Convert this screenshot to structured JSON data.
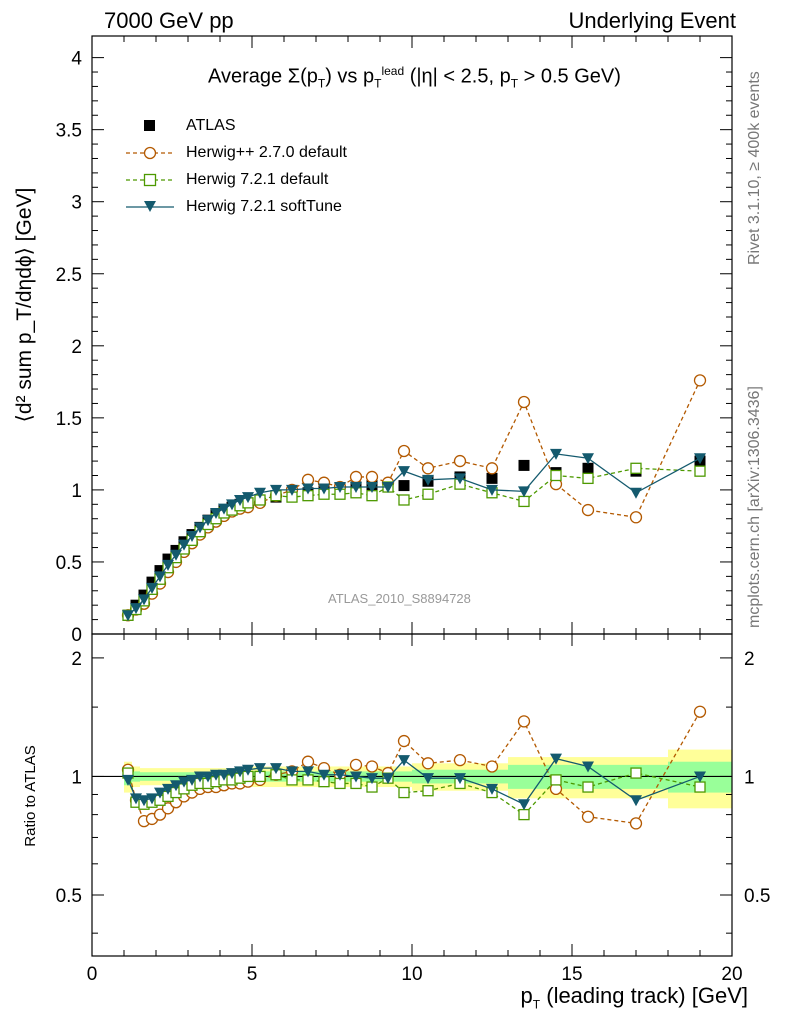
{
  "header": {
    "left": "7000 GeV pp",
    "right": "Underlying Event"
  },
  "side_labels": {
    "rivet": "Rivet 3.1.10, ≥ 400k events",
    "mcplots": "mcplots.cern.ch [arXiv:1306.3436]"
  },
  "watermark": "ATLAS_2010_S8894728",
  "title": {
    "prefix": "Average ",
    "sigma": "Σ",
    "p": "(p",
    "psub": "T",
    "mid": ") vs p",
    "psub2": "T",
    "psup2": "lead",
    "suffix": " (|η| < 2.5, p",
    "psub3": "T",
    "end": " > 0.5 GeV)"
  },
  "axes": {
    "ylabel_main": "⟨d² sum p_T/dηdϕ⟩ [GeV]",
    "ylabel_ratio": "Ratio to ATLAS",
    "xlabel_main": "p",
    "xlabel_sub": "T",
    "xlabel_rest": " (leading track) [GeV]"
  },
  "colors": {
    "atlas": "#000000",
    "herwigpp": "#b35900",
    "herwig721": "#4d9900",
    "softtune": "#145a6e",
    "band_inner": "#99ff99",
    "band_outer": "#ffff99"
  },
  "legend": [
    {
      "label": "ATLAS",
      "marker": "square-filled",
      "color": "#000000"
    },
    {
      "label": "Herwig++ 2.7.0 default",
      "marker": "circle-open",
      "color": "#b35900"
    },
    {
      "label": "Herwig 7.2.1 default",
      "marker": "square-open",
      "color": "#4d9900"
    },
    {
      "label": "Herwig 7.2.1 softTune",
      "marker": "triangle-down-filled",
      "color": "#145a6e"
    }
  ],
  "chart_data": [
    {
      "type": "scatter",
      "panel": "main",
      "xlim": [
        0,
        20
      ],
      "ylim": [
        0,
        4.15
      ],
      "yticks": [
        0,
        0.5,
        1,
        1.5,
        2,
        2.5,
        3,
        3.5,
        4
      ],
      "x": [
        1.125,
        1.375,
        1.625,
        1.875,
        2.125,
        2.375,
        2.625,
        2.875,
        3.125,
        3.375,
        3.625,
        3.875,
        4.125,
        4.375,
        4.625,
        4.875,
        5.25,
        5.75,
        6.25,
        6.75,
        7.25,
        7.75,
        8.25,
        8.75,
        9.25,
        9.75,
        10.5,
        11.5,
        12.5,
        13.5,
        14.5,
        15.5,
        17.0,
        19.0
      ],
      "series": [
        {
          "name": "ATLAS",
          "values": [
            0.13,
            0.2,
            0.27,
            0.36,
            0.44,
            0.52,
            0.58,
            0.64,
            0.69,
            0.74,
            0.79,
            0.83,
            0.86,
            0.88,
            0.9,
            0.91,
            0.93,
            0.95,
            0.97,
            0.98,
            1.0,
            1.01,
            1.02,
            1.03,
            1.03,
            1.03,
            1.06,
            1.09,
            1.08,
            1.17,
            1.12,
            1.15,
            1.13,
            1.2
          ]
        },
        {
          "name": "Herwig++ 2.7.0 default",
          "values": [
            0.13,
            0.17,
            0.21,
            0.28,
            0.35,
            0.43,
            0.5,
            0.57,
            0.63,
            0.69,
            0.74,
            0.78,
            0.82,
            0.85,
            0.87,
            0.88,
            0.91,
            0.96,
            1.0,
            1.07,
            1.05,
            1.02,
            1.09,
            1.09,
            1.05,
            1.27,
            1.15,
            1.2,
            1.15,
            1.61,
            1.04,
            0.86,
            0.81,
            1.76
          ]
        },
        {
          "name": "Herwig 7.2.1 default",
          "values": [
            0.13,
            0.17,
            0.23,
            0.31,
            0.38,
            0.46,
            0.53,
            0.59,
            0.65,
            0.71,
            0.76,
            0.8,
            0.84,
            0.86,
            0.89,
            0.91,
            0.93,
            0.96,
            0.95,
            0.96,
            0.97,
            0.97,
            0.98,
            0.96,
            1.02,
            0.93,
            0.97,
            1.04,
            0.98,
            0.92,
            1.1,
            1.08,
            1.15,
            1.13
          ]
        },
        {
          "name": "Herwig 7.2.1 softTune",
          "values": [
            0.13,
            0.18,
            0.24,
            0.32,
            0.4,
            0.48,
            0.55,
            0.62,
            0.68,
            0.74,
            0.79,
            0.84,
            0.87,
            0.9,
            0.93,
            0.95,
            0.98,
            1.0,
            1.0,
            1.01,
            1.01,
            1.02,
            1.02,
            1.02,
            1.02,
            1.13,
            1.07,
            1.08,
            1.0,
            0.99,
            1.25,
            1.22,
            0.98,
            1.22
          ]
        }
      ]
    },
    {
      "type": "scatter",
      "panel": "ratio",
      "xlim": [
        0,
        20
      ],
      "ylim": [
        0.35,
        2.3
      ],
      "yticks": [
        0.5,
        1,
        2
      ],
      "xticks": [
        0,
        5,
        10,
        15,
        20
      ],
      "x": [
        1.125,
        1.375,
        1.625,
        1.875,
        2.125,
        2.375,
        2.625,
        2.875,
        3.125,
        3.375,
        3.625,
        3.875,
        4.125,
        4.375,
        4.625,
        4.875,
        5.25,
        5.75,
        6.25,
        6.75,
        7.25,
        7.75,
        8.25,
        8.75,
        9.25,
        9.75,
        10.5,
        11.5,
        12.5,
        13.5,
        14.5,
        15.5,
        17.0,
        19.0
      ],
      "series": [
        {
          "name": "Herwig++ 2.7.0 default",
          "values": [
            1.04,
            0.87,
            0.77,
            0.78,
            0.8,
            0.83,
            0.86,
            0.89,
            0.91,
            0.93,
            0.94,
            0.94,
            0.95,
            0.96,
            0.96,
            0.97,
            0.98,
            1.01,
            1.03,
            1.09,
            1.05,
            1.01,
            1.07,
            1.06,
            1.02,
            1.23,
            1.08,
            1.1,
            1.06,
            1.38,
            0.93,
            0.79,
            0.76,
            1.46
          ]
        },
        {
          "name": "Herwig 7.2.1 default",
          "values": [
            1.02,
            0.86,
            0.85,
            0.86,
            0.87,
            0.89,
            0.91,
            0.93,
            0.95,
            0.96,
            0.96,
            0.97,
            0.98,
            0.98,
            0.99,
            1.0,
            1.0,
            1.01,
            0.98,
            0.98,
            0.97,
            0.96,
            0.96,
            0.94,
            0.99,
            0.91,
            0.92,
            0.96,
            0.91,
            0.8,
            0.98,
            0.94,
            1.02,
            0.94
          ]
        },
        {
          "name": "Herwig 7.2.1 softTune",
          "values": [
            0.98,
            0.88,
            0.87,
            0.88,
            0.91,
            0.93,
            0.95,
            0.97,
            0.98,
            1.0,
            1.0,
            1.01,
            1.01,
            1.02,
            1.03,
            1.04,
            1.05,
            1.05,
            1.03,
            1.03,
            1.01,
            1.01,
            1.0,
            0.99,
            0.99,
            1.1,
            0.99,
            0.99,
            0.93,
            0.85,
            1.11,
            1.06,
            0.87,
            1.0
          ]
        }
      ],
      "band": {
        "x_edges": [
          1,
          1.25,
          1.5,
          5,
          10,
          13,
          18,
          20
        ],
        "inner": [
          0.05,
          0.03,
          0.025,
          0.03,
          0.04,
          0.07,
          0.09,
          0.09
        ],
        "outer": [
          0.09,
          0.06,
          0.05,
          0.06,
          0.08,
          0.12,
          0.17,
          0.17
        ]
      }
    }
  ]
}
